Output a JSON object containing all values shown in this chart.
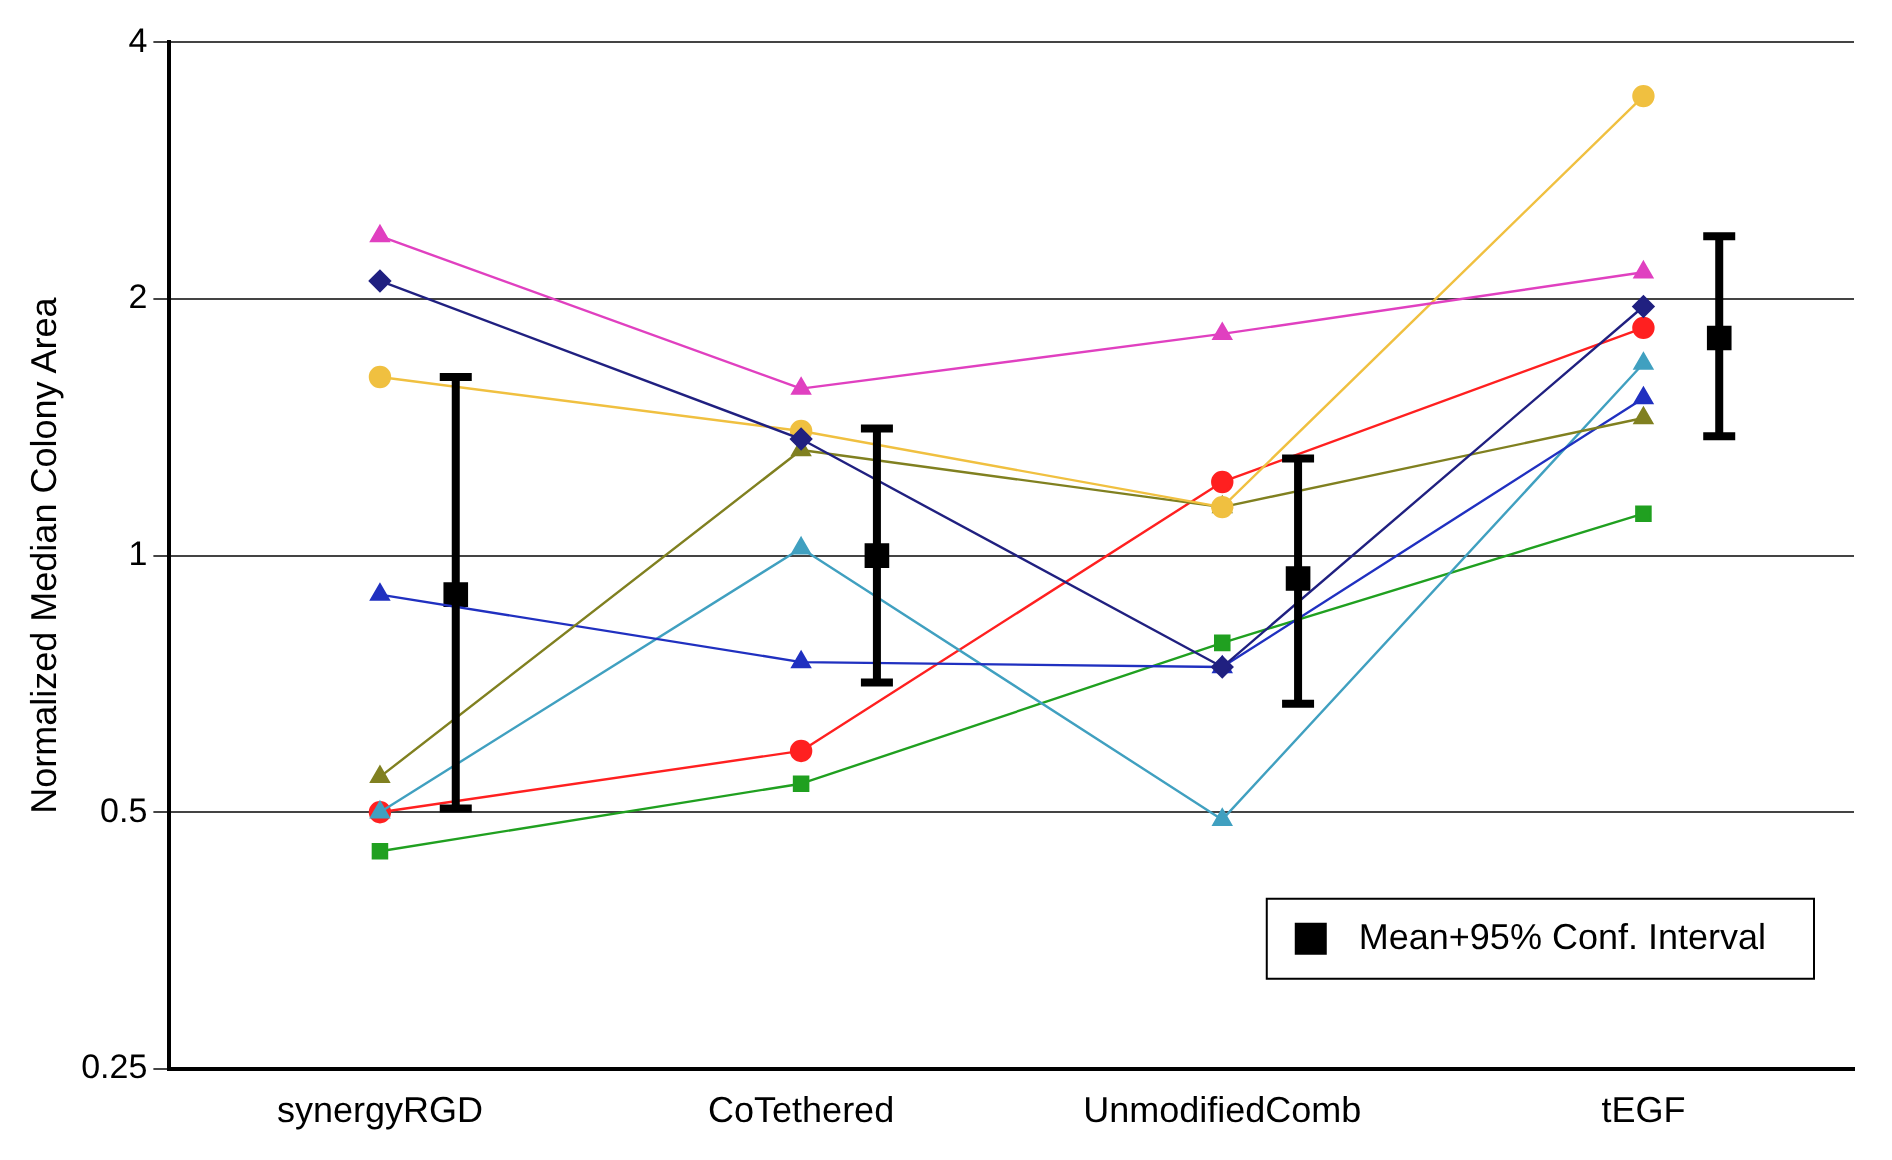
{
  "chart_data": {
    "type": "line",
    "ylabel": "Normalized Median Colony Area",
    "categories": [
      "synergyRGD",
      "CoTethered",
      "UnmodifiedComb",
      "tEGF"
    ],
    "series": [
      {
        "color": "#e040c0",
        "marker": "triangle",
        "values": [
          2.37,
          1.57,
          1.82,
          2.15
        ]
      },
      {
        "color": "#202080",
        "marker": "diamond",
        "values": [
          2.1,
          1.37,
          0.74,
          1.96
        ]
      },
      {
        "color": "#f0c040",
        "marker": "circle",
        "values": [
          1.62,
          1.4,
          1.14,
          3.46
        ]
      },
      {
        "color": "#808020",
        "marker": "triangle",
        "values": [
          0.55,
          1.33,
          1.14,
          1.45
        ]
      },
      {
        "color": "#2030c0",
        "marker": "triangle",
        "values": [
          0.9,
          0.75,
          0.74,
          1.53
        ]
      },
      {
        "color": "#40a0c0",
        "marker": "triangle",
        "values": [
          0.5,
          1.02,
          0.49,
          1.68
        ]
      },
      {
        "color": "#ff2020",
        "marker": "circle",
        "values": [
          0.5,
          0.59,
          1.22,
          1.85
        ]
      },
      {
        "color": "#20a020",
        "marker": "square",
        "values": [
          0.45,
          0.54,
          0.79,
          1.12
        ]
      },
      {
        "type": "scatter",
        "name": "Mean+95% Conf. Interval",
        "color": "#000000",
        "marker": "square",
        "x": [
          "synergyRGD",
          "CoTethered",
          "UnmodifiedComb",
          "tEGF"
        ],
        "values": [
          0.9,
          1.0,
          0.94,
          1.8
        ],
        "errors": [
          [
            0.505,
            1.62
          ],
          [
            0.71,
            1.41
          ],
          [
            0.67,
            1.3
          ],
          [
            1.38,
            2.37
          ]
        ]
      }
    ],
    "log": "y",
    "ylim": [
      0.25,
      4
    ],
    "yticks": [
      0.25,
      0.5,
      1,
      2,
      4
    ],
    "grid": "y",
    "legend": "bottom right"
  }
}
